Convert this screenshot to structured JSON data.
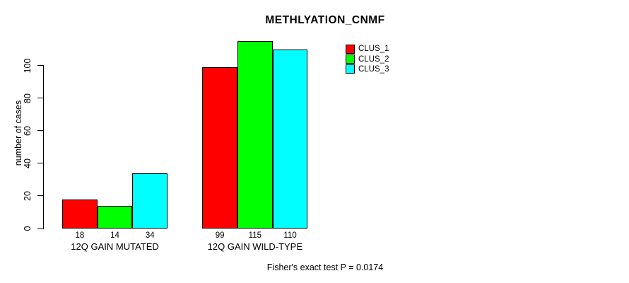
{
  "chart_data": {
    "type": "bar",
    "title": "METHLYATION_CNMF",
    "ylabel": "number of cases",
    "xlabel": "",
    "categories": [
      "12Q GAIN MUTATED",
      "12Q GAIN WILD-TYPE"
    ],
    "series": [
      {
        "name": "CLUS_1",
        "color": "#ff0000",
        "values": [
          18,
          99
        ]
      },
      {
        "name": "CLUS_2",
        "color": "#00ff00",
        "values": [
          14,
          115
        ]
      },
      {
        "name": "CLUS_3",
        "color": "#00ffff",
        "values": [
          34,
          110
        ]
      }
    ],
    "bar_value_labels": [
      [
        "18",
        "14",
        "34"
      ],
      [
        "99",
        "115",
        "110"
      ]
    ],
    "yticks": [
      "0",
      "20",
      "40",
      "60",
      "80",
      "100"
    ],
    "ylim": [
      0,
      115.5
    ],
    "grid": false,
    "legend_position": "top-right",
    "annotation": "Fisher's exact test P = 0.0174",
    "bar_border_color": "#000000",
    "axis_color": "#000000",
    "text_color": "#000000",
    "background_color": "#ffffff"
  }
}
